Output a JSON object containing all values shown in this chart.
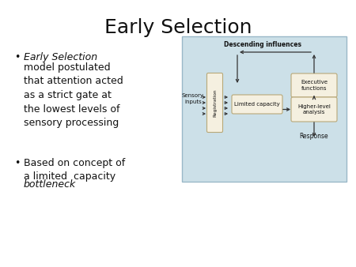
{
  "title": "Early Selection",
  "title_fontsize": 18,
  "background_color": "#ffffff",
  "diagram_bg": "#cce0e8",
  "box_color": "#f5f0e0",
  "box_edge": "#b8a878",
  "text_color": "#111111",
  "arrow_color": "#333333",
  "bullet1_italic": "Early Selection",
  "bullet1_rest": "model postulated\nthat attention acted\nas a strict gate at\nthe lowest levels of\nsensory processing",
  "bullet2_normal": "Based on concept of\na limited  capacity\n",
  "bullet2_italic": "bottleneck",
  "label_descending": "Descending influences",
  "label_sensory": "Sensory\ninputs",
  "label_registration": "Registration",
  "label_limited": "Limited capacity",
  "label_executive": "Executive\nfunctions",
  "label_higher": "Higher-level\nanalysis",
  "label_response": "Response"
}
